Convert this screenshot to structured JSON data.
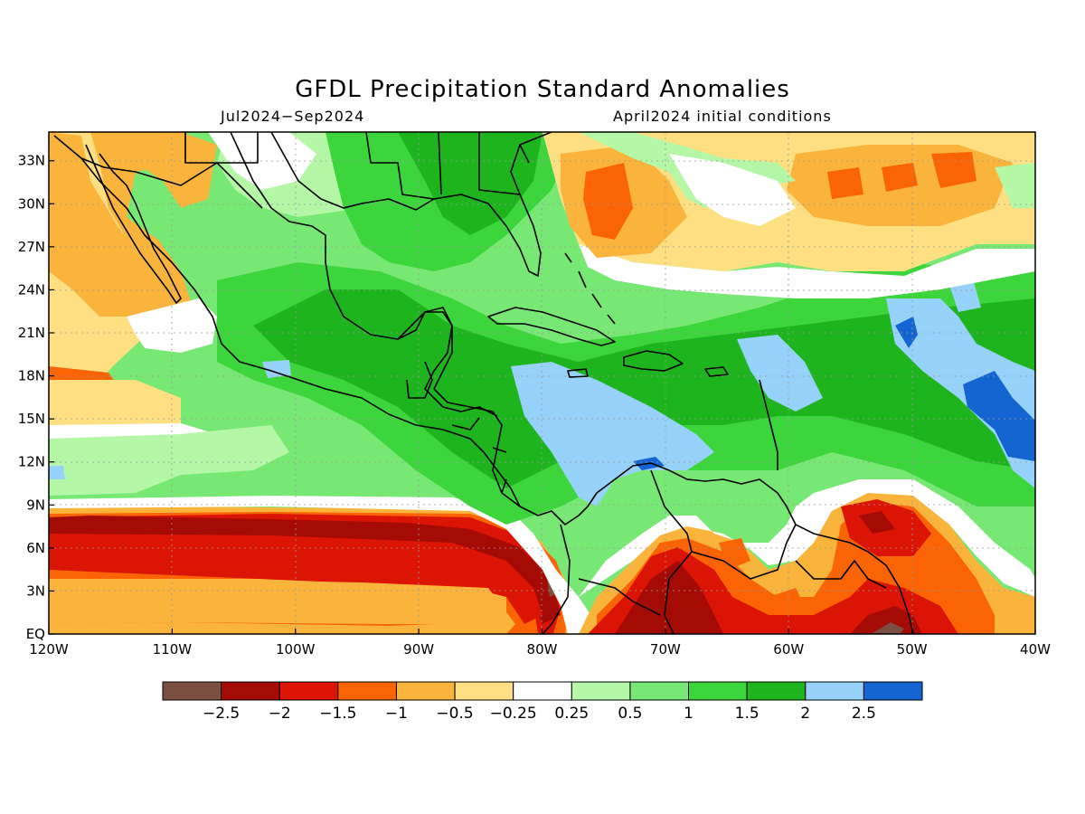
{
  "header": {
    "title": "GFDL Precipitation Standard Anomalies",
    "period": "Jul2024−Sep2024",
    "initial_conditions": "April2024 initial conditions"
  },
  "map": {
    "lon_range": [
      -120,
      -40
    ],
    "lat_range": [
      0,
      35
    ],
    "lat_ticks": [
      {
        "value": 33,
        "label": "33N"
      },
      {
        "value": 30,
        "label": "30N"
      },
      {
        "value": 27,
        "label": "27N"
      },
      {
        "value": 24,
        "label": "24N"
      },
      {
        "value": 21,
        "label": "21N"
      },
      {
        "value": 18,
        "label": "18N"
      },
      {
        "value": 15,
        "label": "15N"
      },
      {
        "value": 12,
        "label": "12N"
      },
      {
        "value": 9,
        "label": "9N"
      },
      {
        "value": 6,
        "label": "6N"
      },
      {
        "value": 3,
        "label": "3N"
      },
      {
        "value": 0,
        "label": "EQ"
      }
    ],
    "lon_ticks": [
      {
        "value": -120,
        "label": "120W"
      },
      {
        "value": -110,
        "label": "110W"
      },
      {
        "value": -100,
        "label": "100W"
      },
      {
        "value": -90,
        "label": "90W"
      },
      {
        "value": -80,
        "label": "80W"
      },
      {
        "value": -70,
        "label": "70W"
      },
      {
        "value": -60,
        "label": "60W"
      },
      {
        "value": -50,
        "label": "50W"
      },
      {
        "value": -40,
        "label": "40W"
      }
    ],
    "grid": true
  },
  "colorbar": {
    "colors": [
      "#7b5043",
      "#a50b05",
      "#dc1405",
      "#fa6405",
      "#fab43c",
      "#fee083",
      "#ffffff",
      "#b4f7a6",
      "#78e874",
      "#3cd53c",
      "#1eb41e",
      "#96d2fa",
      "#1464d2"
    ],
    "labels": [
      "−2.5",
      "−2",
      "−1.5",
      "−1",
      "−0.5",
      "−0.25",
      "0.25",
      "0.5",
      "1",
      "1.5",
      "2",
      "2.5"
    ]
  }
}
